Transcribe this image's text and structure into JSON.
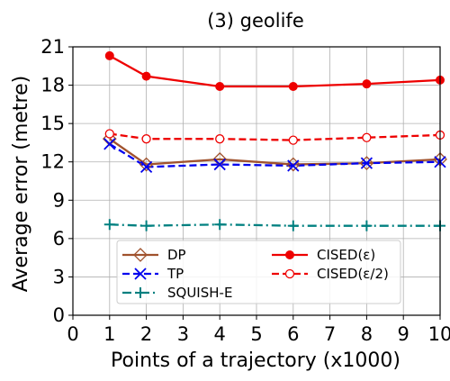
{
  "chart_data": {
    "type": "line",
    "title": "(3) geolife",
    "xlabel": "Points of a trajectory (x1000)",
    "ylabel": "Average error (metre)",
    "xlim": [
      0,
      10
    ],
    "ylim": [
      0,
      21
    ],
    "x_ticks": [
      "0",
      "1",
      "2",
      "3",
      "4",
      "5",
      "6",
      "7",
      "8",
      "9",
      "10"
    ],
    "y_ticks": [
      "0",
      "3",
      "6",
      "9",
      "12",
      "15",
      "18",
      "21"
    ],
    "grid": true,
    "legend_position": "lower-center",
    "x": [
      1,
      2,
      4,
      6,
      8,
      10
    ],
    "series": [
      {
        "name": "DP",
        "values": [
          13.8,
          11.8,
          12.2,
          11.8,
          11.9,
          12.2
        ],
        "color": "#a0522d",
        "style": "solid",
        "marker": "diamond-open"
      },
      {
        "name": "TP",
        "values": [
          13.4,
          11.6,
          11.8,
          11.7,
          11.9,
          12.0
        ],
        "color": "#0000ee",
        "style": "dashed",
        "marker": "x"
      },
      {
        "name": "SQUISH-E",
        "values": [
          7.1,
          7.0,
          7.1,
          7.0,
          7.0,
          7.0
        ],
        "color": "#008080",
        "style": "dashdot",
        "marker": "plus"
      },
      {
        "name": "CISED(ε)",
        "values": [
          20.3,
          18.7,
          17.9,
          17.9,
          18.1,
          18.4
        ],
        "color": "#ee0000",
        "style": "solid",
        "marker": "circle-filled"
      },
      {
        "name": "CISED(ε/2)",
        "values": [
          14.2,
          13.8,
          13.8,
          13.7,
          13.9,
          14.1
        ],
        "color": "#ee0000",
        "style": "dashed",
        "marker": "circle-open"
      }
    ]
  }
}
